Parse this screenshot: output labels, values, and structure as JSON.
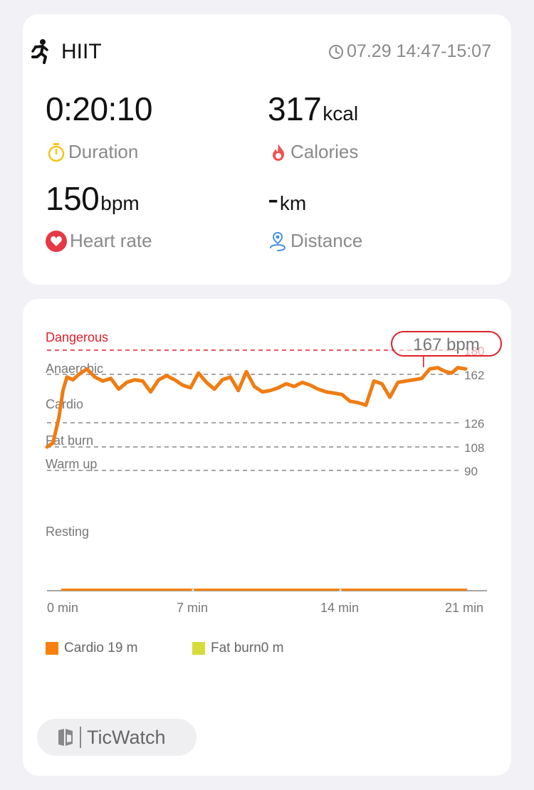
{
  "workout": {
    "activity": "HIIT",
    "time_range": "07.29 14:47-15:07"
  },
  "metrics": {
    "duration": {
      "value": "0:20:10",
      "unit": "",
      "label": "Duration"
    },
    "calories": {
      "value": "317",
      "unit": "kcal",
      "label": "Calories"
    },
    "heart_rate": {
      "value": "150",
      "unit": "bpm",
      "label": "Heart rate"
    },
    "distance": {
      "value": "-",
      "unit": "km",
      "label": "Distance"
    }
  },
  "colors": {
    "series": "#f07c12",
    "danger": "#e0202a",
    "duration_icon": "#f5c518",
    "calories_icon": "#ef5350",
    "heart_icon": "#e53945",
    "distance_icon": "#4a90e2",
    "cardio": "#f7800e",
    "fat_burn": "#d6dd3a"
  },
  "icons": {
    "activity": "running-person-icon",
    "time": "clock-icon",
    "duration": "stopwatch-icon",
    "calories": "flame-icon",
    "heart_rate": "heart-icon",
    "distance": "location-pin-icon",
    "brand": "ticwatch-logo-icon"
  },
  "chart_data": {
    "type": "line",
    "xlabel": "",
    "ylabel": "",
    "xlim": [
      0,
      21
    ],
    "ylim": [
      0,
      190
    ],
    "x_ticks": [
      "0 min",
      "7 min",
      "14 min",
      "21 min"
    ],
    "zones": [
      {
        "name": "Dangerous",
        "threshold": 180
      },
      {
        "name": "Anaerobic",
        "threshold": 162
      },
      {
        "name": "Cardio",
        "threshold": 126
      },
      {
        "name": "Fat burn",
        "threshold": 108
      },
      {
        "name": "Warm up",
        "threshold": 90
      },
      {
        "name": "Resting",
        "threshold": null
      }
    ],
    "threshold_labels": [
      "180",
      "162",
      "126",
      "108",
      "90"
    ],
    "max_label": "167 bpm",
    "series": [
      {
        "x": [
          0,
          0.3,
          0.6,
          0.8,
          1.0,
          1.3,
          1.6,
          2.0,
          2.4,
          2.8,
          3.2,
          3.6,
          4.0,
          4.4,
          4.8,
          5.2,
          5.6,
          6.0,
          6.4,
          6.8,
          7.2,
          7.6,
          8.0,
          8.4,
          8.8,
          9.2,
          9.6,
          10.0,
          10.4,
          10.8,
          11.2,
          11.6,
          12.0,
          12.4,
          12.8,
          13.2,
          13.6,
          14.0,
          14.4,
          14.8,
          15.2,
          15.6,
          16.0,
          16.4,
          16.8,
          17.2,
          17.6,
          18.0,
          18.4,
          18.8,
          19.2,
          19.6,
          20.0,
          20.3,
          20.6,
          21.0
        ],
        "values": [
          108,
          111,
          130,
          150,
          160,
          158,
          162,
          166,
          160,
          157,
          159,
          151,
          156,
          158,
          157,
          149,
          158,
          161,
          158,
          154,
          152,
          163,
          156,
          151,
          158,
          160,
          150,
          164,
          153,
          149,
          150,
          152,
          155,
          153,
          156,
          154,
          151,
          149,
          148,
          147,
          142,
          141,
          139,
          157,
          155,
          145,
          156,
          157,
          158,
          159,
          166,
          167,
          164,
          163,
          167,
          166
        ]
      }
    ],
    "zone_minutes": [
      {
        "name": "Cardio",
        "minutes": 19
      },
      {
        "name": "Fat burn",
        "minutes": 0
      }
    ],
    "legend": [
      "Cardio 19 m",
      "Fat burn0 m"
    ],
    "grid": false,
    "legend_position": "bottom-left"
  },
  "brand": {
    "name": "TicWatch"
  }
}
